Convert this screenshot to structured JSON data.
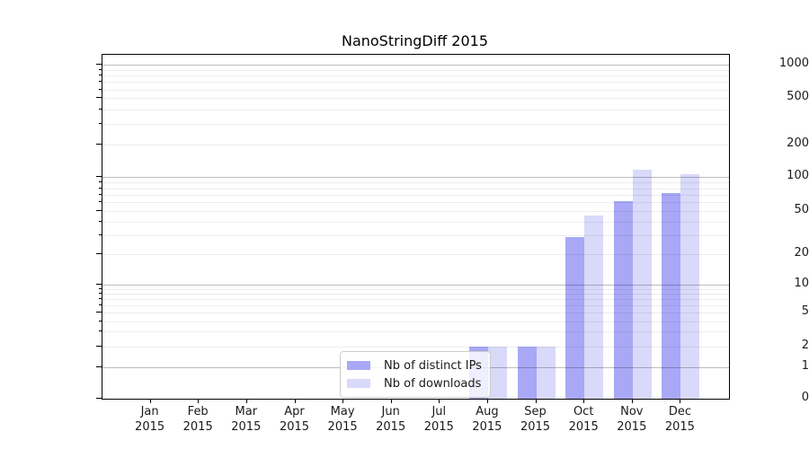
{
  "chart_data": {
    "type": "bar",
    "title": "NanoStringDiff 2015",
    "categories": [
      "Jan",
      "Feb",
      "Mar",
      "Apr",
      "May",
      "Jun",
      "Jul",
      "Aug",
      "Sep",
      "Oct",
      "Nov",
      "Dec"
    ],
    "x_tick_second_line": "2015",
    "series": [
      {
        "name": "Nb of distinct IPs",
        "color": "#a8a8f6",
        "values": [
          0,
          0,
          0,
          0,
          0,
          0,
          0,
          2,
          2,
          29,
          62,
          73
        ]
      },
      {
        "name": "Nb of downloads",
        "color": "#d9d9fa",
        "values": [
          0,
          0,
          0,
          0,
          0,
          0,
          0,
          2,
          2,
          46,
          117,
          107
        ]
      }
    ],
    "yscale": "log",
    "ylim": [
      0,
      1000
    ],
    "y_ticks": [
      0,
      1,
      2,
      5,
      10,
      20,
      50,
      100,
      200,
      500,
      1000
    ],
    "y_tick_labels": [
      "0",
      "1",
      "2",
      "5",
      "10",
      "20",
      "50",
      "100",
      "200",
      "500",
      "1000"
    ],
    "grid": true,
    "legend_position": "lower-center-inside",
    "colors": {
      "major_grid": "#bdbdbd",
      "minor_grid": "#ececec",
      "axis": "#000000",
      "text": "#1a1a1a",
      "background": "#ffffff"
    }
  }
}
